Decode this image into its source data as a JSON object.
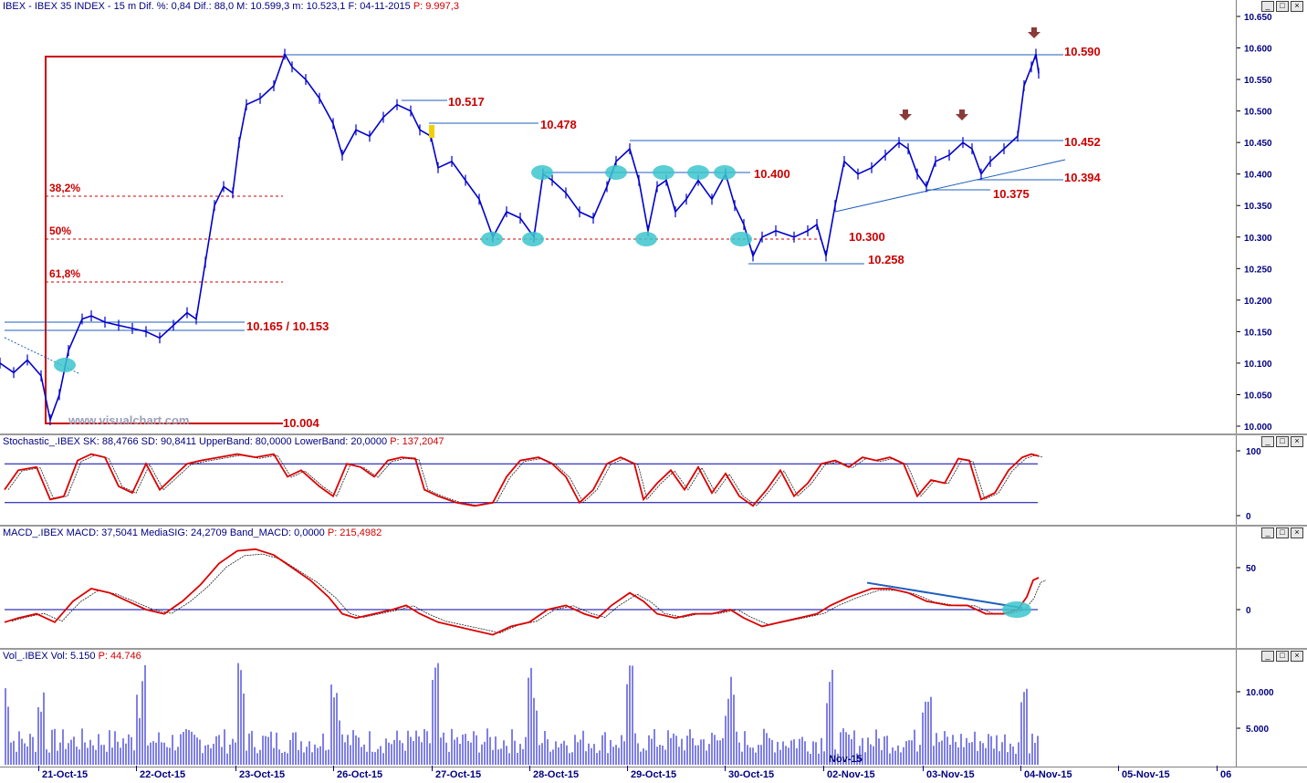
{
  "colors": {
    "price": "#0000cc",
    "level": "#cc0000",
    "line": "#1f5fbf",
    "fibo": "#cc0000",
    "stoch_k": "#dd0000",
    "band": "#0000aa",
    "marker": "#3cc6cc",
    "arrow": "#8b3a3a"
  },
  "main": {
    "header": "IBEX - IBEX 35 INDEX -  15 m  Dif. %: 0,84  Dif.: 88,0  M: 10.599,3  m: 10.523,1  F: 04-11-2015",
    "header_p": "P: 9.997,3",
    "watermark": "www.visualchart.com",
    "y_ticks": [
      "10.650",
      "10.600",
      "10.550",
      "10.500",
      "10.450",
      "10.400",
      "10.350",
      "10.300",
      "10.250",
      "10.200",
      "10.150",
      "10.100",
      "10.050",
      "10.000"
    ],
    "levels": [
      "10.590",
      "10.517",
      "10.478",
      "10.452",
      "10.400",
      "10.394",
      "10.375",
      "10.300",
      "10.258",
      "10.165 / 10.153",
      "10.004"
    ],
    "fibo": [
      "38,2%",
      "50%",
      "61,8%"
    ]
  },
  "stoch": {
    "header": "Stochastic_.IBEX SK: 88,4766  SD: 90,8411  UpperBand: 80,0000  LowerBand: 20,0000",
    "header_p": "P: 137,2047",
    "y_ticks": [
      "100",
      "0"
    ]
  },
  "macd": {
    "header": "MACD_.IBEX MACD: 37,5041  MediaSIG: 24,2709  Band_MACD: 0,0000",
    "header_p": "P: 215,4982",
    "y_ticks": [
      "50",
      "0"
    ]
  },
  "vol": {
    "header": "Vol_.IBEX Vol: 5.150",
    "header_p": "P: 44.746",
    "y_ticks": [
      "10.000",
      "5.000"
    ],
    "month_label": "Nov-15"
  },
  "dates": [
    "21-Oct-15",
    "22-Oct-15",
    "23-Oct-15",
    "26-Oct-15",
    "27-Oct-15",
    "28-Oct-15",
    "29-Oct-15",
    "30-Oct-15",
    "02-Nov-15",
    "03-Nov-15",
    "04-Nov-15",
    "05-Nov-15",
    "06"
  ],
  "chart_data": {
    "type": "line",
    "title": "IBEX - IBEX 35 INDEX - 15 m",
    "x": [
      "21-Oct-15",
      "22-Oct-15",
      "23-Oct-15",
      "26-Oct-15",
      "27-Oct-15",
      "28-Oct-15",
      "29-Oct-15",
      "30-Oct-15",
      "02-Nov-15",
      "03-Nov-15",
      "04-Nov-15"
    ],
    "ylim": [
      9990,
      10655
    ],
    "price_path": [
      [
        0,
        10100
      ],
      [
        15,
        10085
      ],
      [
        30,
        10105
      ],
      [
        45,
        10080
      ],
      [
        55,
        10010
      ],
      [
        65,
        10050
      ],
      [
        75,
        10120
      ],
      [
        90,
        10170
      ],
      [
        100,
        10175
      ],
      [
        115,
        10165
      ],
      [
        130,
        10160
      ],
      [
        145,
        10155
      ],
      [
        160,
        10150
      ],
      [
        175,
        10140
      ],
      [
        190,
        10160
      ],
      [
        205,
        10180
      ],
      [
        215,
        10170
      ],
      [
        225,
        10260
      ],
      [
        235,
        10350
      ],
      [
        245,
        10380
      ],
      [
        255,
        10370
      ],
      [
        262,
        10450
      ],
      [
        270,
        10510
      ],
      [
        285,
        10520
      ],
      [
        300,
        10540
      ],
      [
        312,
        10590
      ],
      [
        320,
        10570
      ],
      [
        335,
        10550
      ],
      [
        350,
        10520
      ],
      [
        365,
        10480
      ],
      [
        375,
        10430
      ],
      [
        390,
        10470
      ],
      [
        405,
        10460
      ],
      [
        420,
        10490
      ],
      [
        435,
        10510
      ],
      [
        450,
        10500
      ],
      [
        460,
        10470
      ],
      [
        472,
        10460
      ],
      [
        480,
        10410
      ],
      [
        495,
        10420
      ],
      [
        510,
        10390
      ],
      [
        525,
        10360
      ],
      [
        540,
        10300
      ],
      [
        555,
        10340
      ],
      [
        570,
        10330
      ],
      [
        585,
        10300
      ],
      [
        595,
        10400
      ],
      [
        605,
        10390
      ],
      [
        620,
        10370
      ],
      [
        635,
        10340
      ],
      [
        650,
        10330
      ],
      [
        665,
        10380
      ],
      [
        675,
        10420
      ],
      [
        690,
        10440
      ],
      [
        700,
        10390
      ],
      [
        710,
        10310
      ],
      [
        720,
        10380
      ],
      [
        730,
        10390
      ],
      [
        740,
        10340
      ],
      [
        752,
        10360
      ],
      [
        765,
        10390
      ],
      [
        780,
        10360
      ],
      [
        795,
        10400
      ],
      [
        805,
        10350
      ],
      [
        815,
        10320
      ],
      [
        825,
        10270
      ],
      [
        835,
        10300
      ],
      [
        850,
        10310
      ],
      [
        870,
        10300
      ],
      [
        885,
        10310
      ],
      [
        895,
        10320
      ],
      [
        905,
        10270
      ],
      [
        915,
        10350
      ],
      [
        925,
        10420
      ],
      [
        940,
        10400
      ],
      [
        955,
        10410
      ],
      [
        970,
        10430
      ],
      [
        985,
        10450
      ],
      [
        995,
        10440
      ],
      [
        1005,
        10400
      ],
      [
        1015,
        10380
      ],
      [
        1025,
        10420
      ],
      [
        1040,
        10430
      ],
      [
        1055,
        10450
      ],
      [
        1065,
        10440
      ],
      [
        1075,
        10400
      ],
      [
        1085,
        10420
      ],
      [
        1100,
        10440
      ],
      [
        1115,
        10460
      ],
      [
        1122,
        10540
      ],
      [
        1130,
        10570
      ],
      [
        1135,
        10590
      ],
      [
        1138,
        10560
      ]
    ],
    "stoch_path": [
      [
        5,
        40
      ],
      [
        20,
        70
      ],
      [
        40,
        75
      ],
      [
        55,
        25
      ],
      [
        70,
        30
      ],
      [
        85,
        85
      ],
      [
        100,
        95
      ],
      [
        115,
        90
      ],
      [
        130,
        45
      ],
      [
        145,
        35
      ],
      [
        160,
        80
      ],
      [
        175,
        40
      ],
      [
        190,
        60
      ],
      [
        205,
        80
      ],
      [
        220,
        85
      ],
      [
        240,
        90
      ],
      [
        260,
        95
      ],
      [
        280,
        90
      ],
      [
        300,
        95
      ],
      [
        315,
        60
      ],
      [
        330,
        70
      ],
      [
        350,
        45
      ],
      [
        365,
        30
      ],
      [
        380,
        80
      ],
      [
        395,
        75
      ],
      [
        410,
        60
      ],
      [
        425,
        85
      ],
      [
        440,
        90
      ],
      [
        455,
        88
      ],
      [
        465,
        40
      ],
      [
        480,
        30
      ],
      [
        500,
        20
      ],
      [
        520,
        15
      ],
      [
        540,
        20
      ],
      [
        555,
        60
      ],
      [
        570,
        85
      ],
      [
        590,
        90
      ],
      [
        605,
        80
      ],
      [
        620,
        60
      ],
      [
        635,
        20
      ],
      [
        650,
        40
      ],
      [
        665,
        80
      ],
      [
        680,
        90
      ],
      [
        695,
        80
      ],
      [
        705,
        25
      ],
      [
        720,
        50
      ],
      [
        735,
        70
      ],
      [
        750,
        40
      ],
      [
        765,
        75
      ],
      [
        780,
        35
      ],
      [
        795,
        65
      ],
      [
        810,
        30
      ],
      [
        825,
        15
      ],
      [
        840,
        40
      ],
      [
        855,
        70
      ],
      [
        870,
        30
      ],
      [
        885,
        50
      ],
      [
        900,
        80
      ],
      [
        915,
        85
      ],
      [
        930,
        75
      ],
      [
        945,
        90
      ],
      [
        960,
        85
      ],
      [
        975,
        90
      ],
      [
        990,
        80
      ],
      [
        1005,
        30
      ],
      [
        1020,
        55
      ],
      [
        1035,
        50
      ],
      [
        1050,
        88
      ],
      [
        1062,
        85
      ],
      [
        1075,
        25
      ],
      [
        1090,
        35
      ],
      [
        1105,
        70
      ],
      [
        1120,
        90
      ],
      [
        1130,
        95
      ],
      [
        1138,
        92
      ]
    ],
    "macd_path": [
      [
        5,
        -15
      ],
      [
        20,
        -10
      ],
      [
        40,
        -5
      ],
      [
        60,
        -15
      ],
      [
        80,
        10
      ],
      [
        100,
        25
      ],
      [
        120,
        20
      ],
      [
        140,
        10
      ],
      [
        160,
        0
      ],
      [
        180,
        -5
      ],
      [
        200,
        10
      ],
      [
        220,
        30
      ],
      [
        240,
        55
      ],
      [
        260,
        70
      ],
      [
        280,
        72
      ],
      [
        300,
        65
      ],
      [
        320,
        50
      ],
      [
        340,
        35
      ],
      [
        360,
        15
      ],
      [
        375,
        -5
      ],
      [
        390,
        -10
      ],
      [
        410,
        -5
      ],
      [
        430,
        0
      ],
      [
        445,
        5
      ],
      [
        460,
        -5
      ],
      [
        480,
        -15
      ],
      [
        500,
        -20
      ],
      [
        520,
        -25
      ],
      [
        540,
        -30
      ],
      [
        560,
        -20
      ],
      [
        580,
        -15
      ],
      [
        600,
        0
      ],
      [
        620,
        5
      ],
      [
        640,
        -5
      ],
      [
        655,
        -10
      ],
      [
        670,
        5
      ],
      [
        690,
        20
      ],
      [
        705,
        10
      ],
      [
        720,
        -5
      ],
      [
        740,
        -10
      ],
      [
        760,
        -5
      ],
      [
        780,
        -5
      ],
      [
        800,
        0
      ],
      [
        815,
        -10
      ],
      [
        835,
        -20
      ],
      [
        855,
        -15
      ],
      [
        875,
        -10
      ],
      [
        895,
        -5
      ],
      [
        910,
        5
      ],
      [
        930,
        15
      ],
      [
        955,
        25
      ],
      [
        975,
        25
      ],
      [
        995,
        20
      ],
      [
        1015,
        10
      ],
      [
        1040,
        5
      ],
      [
        1060,
        5
      ],
      [
        1080,
        -5
      ],
      [
        1100,
        -5
      ],
      [
        1115,
        0
      ],
      [
        1125,
        15
      ],
      [
        1132,
        35
      ],
      [
        1138,
        38
      ]
    ]
  }
}
